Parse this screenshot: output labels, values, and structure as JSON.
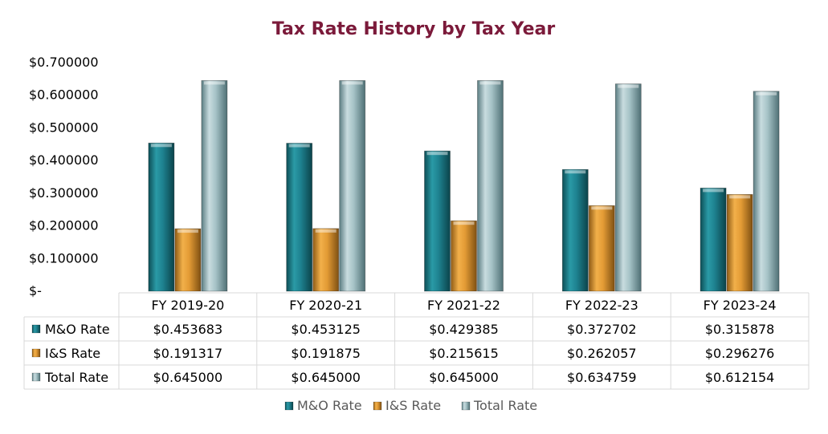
{
  "chart_data": {
    "type": "bar",
    "title": "Tax Rate History by Tax Year",
    "categories": [
      "FY 2019-20",
      "FY 2020-21",
      "FY 2021-22",
      "FY 2022-23",
      "FY 2023-24"
    ],
    "ylim": [
      0,
      0.7
    ],
    "yticks": [
      "$-",
      "$0.100000",
      "$0.200000",
      "$0.300000",
      "$0.400000",
      "$0.500000",
      "$0.600000",
      "$0.700000"
    ],
    "series": [
      {
        "name": "M&O Rate",
        "color": "#1e7f8a",
        "values": [
          0.453683,
          0.453125,
          0.429385,
          0.372702,
          0.315878
        ],
        "labels": [
          "$0.453683",
          "$0.453125",
          "$0.429385",
          "$0.372702",
          "$0.315878"
        ]
      },
      {
        "name": "I&S Rate",
        "color": "#e39b35",
        "values": [
          0.191317,
          0.191875,
          0.215615,
          0.262057,
          0.296276
        ],
        "labels": [
          "$0.191317",
          "$0.191875",
          "$0.215615",
          "$0.262057",
          "$0.296276"
        ]
      },
      {
        "name": "Total Rate",
        "color": "#9fbec3",
        "values": [
          0.645,
          0.645,
          0.645,
          0.634759,
          0.612154
        ],
        "labels": [
          "$0.645000",
          "$0.645000",
          "$0.645000",
          "$0.634759",
          "$0.612154"
        ]
      }
    ],
    "legend": "bottom",
    "data_table": true
  }
}
